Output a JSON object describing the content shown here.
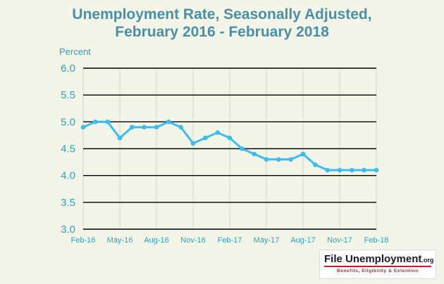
{
  "colors": {
    "background": "#f2f5e8",
    "title": "#4a8fa8",
    "axis_text": "#2ca4b7",
    "line": "#3bbdf0",
    "gridline": "#000000",
    "vgrid": "#d8dbc6"
  },
  "logo": {
    "main": "File Unemployment",
    "org": ".org",
    "tagline": "Benefits, Eligibility & Extention"
  },
  "chart_data": {
    "type": "line",
    "title_line1": "Unemployment Rate, Seasonally Adjusted,",
    "title_line2": "February 2016 - February 2018",
    "ylabel": "Percent",
    "ylim": [
      3.0,
      6.0
    ],
    "yticks": [
      "6.0",
      "5.5",
      "5.0",
      "4.5",
      "4.0",
      "3.5",
      "3.0"
    ],
    "ytick_values": [
      6.0,
      5.5,
      5.0,
      4.5,
      4.0,
      3.5,
      3.0
    ],
    "x": [
      "Feb-16",
      "Mar-16",
      "Apr-16",
      "May-16",
      "Jun-16",
      "Jul-16",
      "Aug-16",
      "Sep-16",
      "Oct-16",
      "Nov-16",
      "Dec-16",
      "Jan-17",
      "Feb-17",
      "Mar-17",
      "Apr-17",
      "May-17",
      "Jun-17",
      "Jul-17",
      "Aug-17",
      "Sep-17",
      "Oct-17",
      "Nov-17",
      "Dec-17",
      "Jan-18",
      "Feb-18"
    ],
    "xtick_labels": [
      "Feb-16",
      "May-16",
      "Aug-16",
      "Nov-16",
      "Feb-17",
      "May-17",
      "Aug-17",
      "Nov-17",
      "Feb-18"
    ],
    "series": [
      {
        "values": [
          4.9,
          5.0,
          5.0,
          4.7,
          4.9,
          4.9,
          4.9,
          5.0,
          4.9,
          4.6,
          4.7,
          4.8,
          4.7,
          4.5,
          4.4,
          4.3,
          4.3,
          4.3,
          4.4,
          4.2,
          4.1,
          4.1,
          4.1,
          4.1,
          4.1
        ]
      }
    ],
    "grid": true,
    "legend": "none"
  }
}
